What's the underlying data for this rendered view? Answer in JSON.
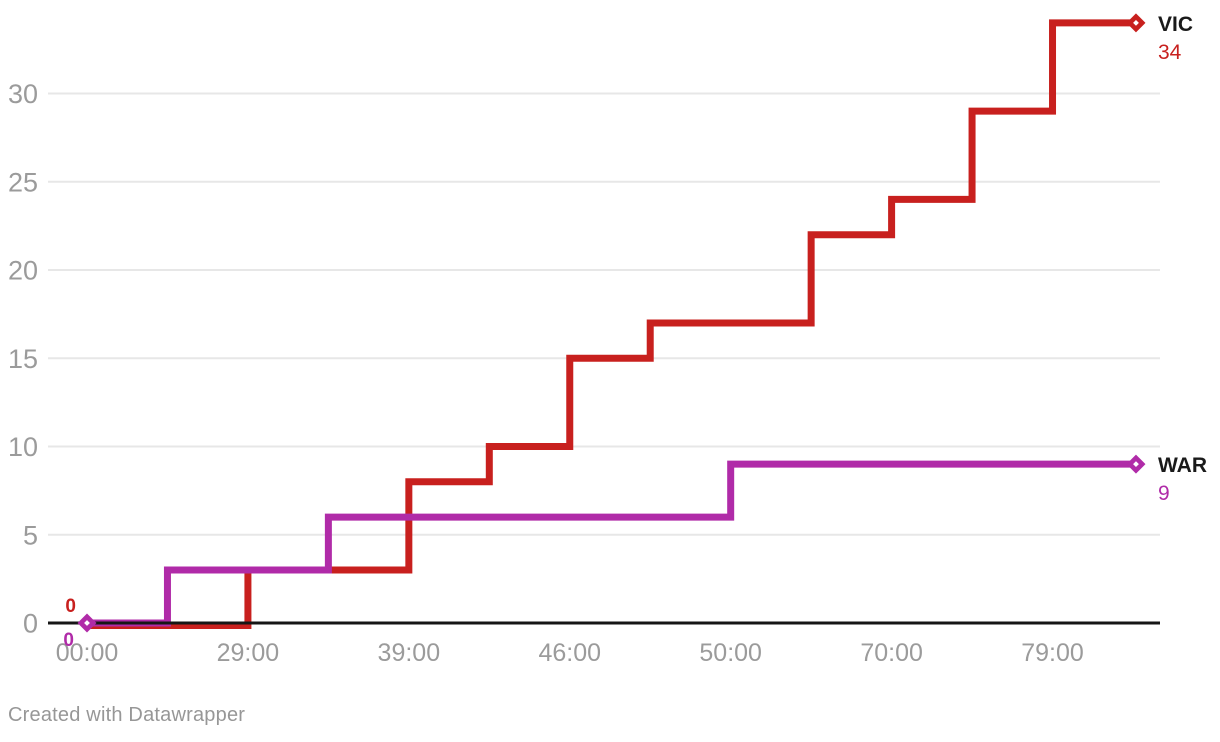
{
  "chart_data": {
    "type": "line",
    "subtype": "step",
    "step_mode": "before",
    "title": "",
    "xlabel": "",
    "ylabel": "",
    "x_tick_labels": [
      "00:00",
      "29:00",
      "39:00",
      "46:00",
      "50:00",
      "70:00",
      "79:00"
    ],
    "x_tick_indices": [
      0,
      2,
      4,
      6,
      8,
      10,
      12
    ],
    "num_points": 14,
    "yticks": [
      0,
      5,
      10,
      15,
      20,
      25,
      30
    ],
    "ylim": [
      0,
      34
    ],
    "grid": "horizontal",
    "legend_position": "line-end-labels",
    "series": [
      {
        "name": "VIC",
        "color": "#c8201e",
        "values": [
          0,
          0,
          3,
          3,
          8,
          10,
          15,
          17,
          17,
          22,
          24,
          29,
          34,
          34
        ],
        "start_value_label": "0",
        "end_value_label": "34",
        "marker": "diamond"
      },
      {
        "name": "WAR",
        "color": "#b02ba8",
        "values": [
          0,
          3,
          3,
          6,
          6,
          6,
          6,
          6,
          9,
          9,
          9,
          9,
          9,
          9
        ],
        "start_value_label": "0",
        "end_value_label": "9",
        "marker": "diamond"
      }
    ]
  },
  "colors": {
    "background": "#ffffff",
    "axis": "#161616",
    "grid": "#e7e7e7",
    "tick_text": "#9b9b9b",
    "series_name_text": "#1a1a1a"
  },
  "footer": {
    "attribution": "Created with Datawrapper"
  }
}
